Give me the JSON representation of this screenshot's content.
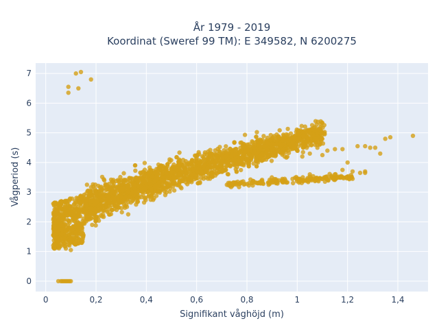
{
  "chart_data": {
    "type": "scatter",
    "title_line1": "År 1979 - 2019",
    "title_line2": "Koordinat (Sweref 99 TM): E 349582, N 6200275",
    "xlabel": "Signifikant våghöjd (m)",
    "ylabel": "Vågperiod (s)",
    "xlim": [
      -0.04,
      1.52
    ],
    "ylim": [
      -0.35,
      7.35
    ],
    "xticks": [
      0,
      0.2,
      0.4,
      0.6,
      0.8,
      1,
      1.2,
      1.4
    ],
    "xtick_labels": [
      "0",
      "0,2",
      "0,4",
      "0,6",
      "0,8",
      "1",
      "1,2",
      "1,4"
    ],
    "yticks": [
      0,
      1,
      2,
      3,
      4,
      5,
      6,
      7
    ],
    "ytick_labels": [
      "0",
      "1",
      "2",
      "3",
      "4",
      "5",
      "6",
      "7"
    ],
    "grid": true,
    "colors": {
      "marker": "#d4a017",
      "plot_background": "#e5ecf6",
      "grid": "#ffffff",
      "text": "#2a3f5f"
    },
    "points": [
      [
        0.05,
        0
      ],
      [
        0.06,
        0
      ],
      [
        0.065,
        0
      ],
      [
        0.07,
        0
      ],
      [
        0.075,
        0
      ],
      [
        0.08,
        0
      ],
      [
        0.085,
        0
      ],
      [
        0.09,
        0
      ],
      [
        0.095,
        0
      ],
      [
        0.1,
        0
      ],
      [
        0.12,
        7.0
      ],
      [
        0.14,
        7.05
      ],
      [
        0.09,
        6.55
      ],
      [
        0.09,
        6.35
      ],
      [
        0.13,
        6.5
      ],
      [
        0.18,
        6.8
      ],
      [
        0.03,
        1.2
      ],
      [
        0.03,
        1.55
      ],
      [
        0.05,
        1.3
      ],
      [
        0.06,
        1.9
      ],
      [
        0.08,
        1.1
      ],
      [
        0.1,
        1.05
      ],
      [
        0.12,
        1.25
      ],
      [
        0.15,
        1.55
      ],
      [
        0.18,
        2.7
      ],
      [
        0.2,
        2.95
      ],
      [
        0.25,
        3.1
      ],
      [
        0.3,
        3.4
      ],
      [
        0.35,
        3.45
      ],
      [
        0.4,
        3.6
      ],
      [
        0.5,
        3.7
      ],
      [
        0.6,
        3.8
      ],
      [
        0.7,
        4.0
      ],
      [
        0.75,
        4.1
      ],
      [
        0.8,
        4.1
      ],
      [
        0.85,
        4.2
      ],
      [
        0.9,
        4.25
      ],
      [
        0.95,
        4.2
      ],
      [
        1.0,
        4.4
      ],
      [
        1.02,
        4.2
      ],
      [
        1.05,
        4.3
      ],
      [
        1.08,
        4.5
      ],
      [
        1.1,
        4.25
      ],
      [
        1.12,
        4.4
      ],
      [
        1.15,
        4.45
      ],
      [
        1.18,
        4.45
      ],
      [
        1.2,
        4.0
      ],
      [
        1.22,
        3.7
      ],
      [
        1.24,
        4.55
      ],
      [
        1.27,
        4.55
      ],
      [
        1.29,
        4.5
      ],
      [
        1.31,
        4.5
      ],
      [
        1.33,
        4.3
      ],
      [
        1.35,
        4.8
      ],
      [
        1.37,
        4.85
      ],
      [
        1.46,
        4.9
      ],
      [
        1.05,
        3.6
      ],
      [
        1.12,
        3.45
      ],
      [
        1.15,
        3.6
      ],
      [
        1.18,
        3.75
      ],
      [
        1.22,
        3.45
      ],
      [
        1.25,
        3.65
      ],
      [
        1.27,
        3.65
      ],
      [
        1.27,
        3.7
      ],
      [
        1.2,
        3.5
      ],
      [
        1.15,
        3.45
      ],
      [
        1.1,
        3.45
      ],
      [
        1.05,
        3.45
      ],
      [
        1.0,
        3.45
      ],
      [
        0.95,
        3.45
      ],
      [
        0.9,
        3.4
      ],
      [
        0.85,
        3.3
      ]
    ]
  }
}
